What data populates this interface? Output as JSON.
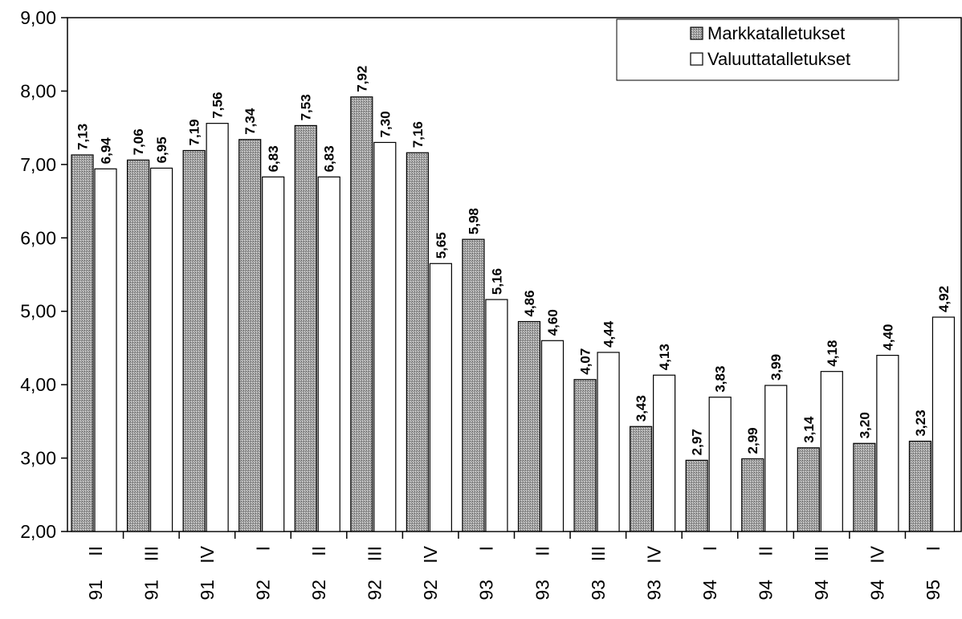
{
  "chart_data": {
    "type": "bar",
    "categories": [
      {
        "quarter": "II",
        "year": "91"
      },
      {
        "quarter": "III",
        "year": "91"
      },
      {
        "quarter": "IV",
        "year": "91"
      },
      {
        "quarter": "I",
        "year": "92"
      },
      {
        "quarter": "II",
        "year": "92"
      },
      {
        "quarter": "III",
        "year": "92"
      },
      {
        "quarter": "IV",
        "year": "92"
      },
      {
        "quarter": "I",
        "year": "93"
      },
      {
        "quarter": "II",
        "year": "93"
      },
      {
        "quarter": "III",
        "year": "93"
      },
      {
        "quarter": "IV",
        "year": "93"
      },
      {
        "quarter": "I",
        "year": "94"
      },
      {
        "quarter": "II",
        "year": "94"
      },
      {
        "quarter": "III",
        "year": "94"
      },
      {
        "quarter": "IV",
        "year": "94"
      },
      {
        "quarter": "I",
        "year": "95"
      }
    ],
    "series": [
      {
        "name": "Markkatalletukset",
        "color": "#9a9a9a",
        "pattern": "dotted-gray",
        "values": [
          7.13,
          7.06,
          7.19,
          7.34,
          7.53,
          7.92,
          7.16,
          5.98,
          4.86,
          4.07,
          3.43,
          2.97,
          2.99,
          3.14,
          3.2,
          3.23
        ],
        "labels": [
          "7,13",
          "7,06",
          "7,19",
          "7,34",
          "7,53",
          "7,92",
          "7,16",
          "5,98",
          "4,86",
          "4,07",
          "3,43",
          "2,97",
          "2,99",
          "3,14",
          "3,20",
          "3,23"
        ]
      },
      {
        "name": "Valuuttatalletukset",
        "color": "#ffffff",
        "pattern": "none",
        "values": [
          6.94,
          6.95,
          7.56,
          6.83,
          6.83,
          7.3,
          5.65,
          5.16,
          4.6,
          4.44,
          4.13,
          3.83,
          3.99,
          4.18,
          4.4,
          4.92
        ],
        "labels": [
          "6,94",
          "6,95",
          "7,56",
          "6,83",
          "6,83",
          "7,30",
          "5,65",
          "5,16",
          "4,60",
          "4,44",
          "4,13",
          "3,83",
          "3,99",
          "4,18",
          "4,40",
          "4,92"
        ]
      }
    ],
    "ylim": [
      2.0,
      9.0
    ],
    "yticks": [
      {
        "value": 2,
        "label": "2,00"
      },
      {
        "value": 3,
        "label": "3,00"
      },
      {
        "value": 4,
        "label": "4,00"
      },
      {
        "value": 5,
        "label": "5,00"
      },
      {
        "value": 6,
        "label": "6,00"
      },
      {
        "value": 7,
        "label": "7,00"
      },
      {
        "value": 8,
        "label": "8,00"
      },
      {
        "value": 9,
        "label": "9,00"
      }
    ],
    "grid": false,
    "legend_position": "top-right",
    "title": "",
    "xlabel": "",
    "ylabel": ""
  }
}
